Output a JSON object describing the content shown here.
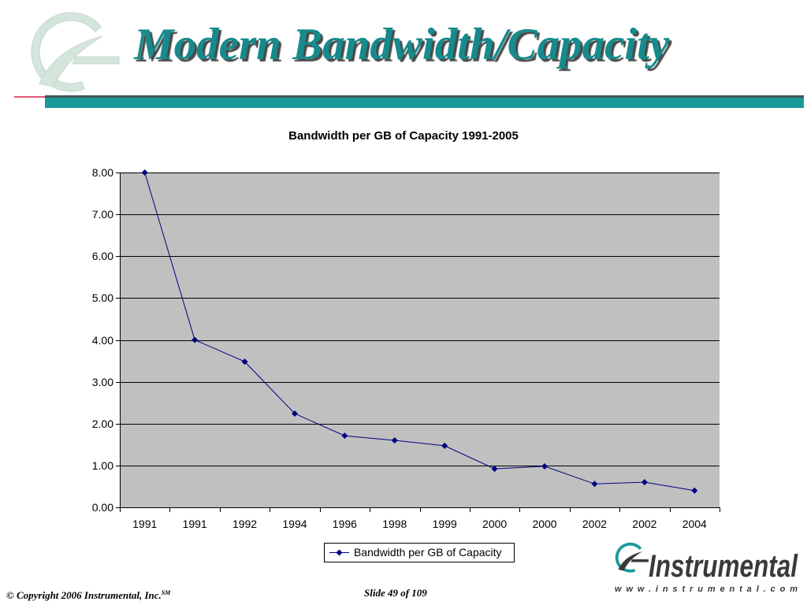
{
  "slide": {
    "title": "Modern Bandwidth/Capacity"
  },
  "footer": {
    "copyright": "© Copyright 2006 Instrumental, Inc.",
    "service_mark": "SM",
    "slide_number": "Slide 49 of 109"
  },
  "branding": {
    "watermark_icon": "instrumental-watermark-icon",
    "logo_icon": "instrumental-logo-icon",
    "logo_name": "Instrumental",
    "logo_url": "www.instrumental.com"
  },
  "colors": {
    "title": "#178a8c",
    "title_shadow": "#4a4a4a",
    "header_bar": "#19989a",
    "header_bar_edge": "#3f5659",
    "header_accent_line": "#e05a7a",
    "watermark": "#d4e5dc",
    "watermark_edge": "#c3d7cd",
    "logo_ring": "#1a9a9a",
    "logo_text": "#3a3a3a"
  },
  "chart_data": {
    "type": "line",
    "title": "Bandwidth per GB of Capacity 1991-2005",
    "categories": [
      "1991",
      "1991",
      "1992",
      "1994",
      "1996",
      "1998",
      "1999",
      "2000",
      "2000",
      "2002",
      "2002",
      "2004"
    ],
    "series": [
      {
        "name": "Bandwidth per GB of Capacity",
        "values": [
          8.0,
          4.0,
          3.48,
          2.24,
          1.71,
          1.6,
          1.47,
          0.92,
          0.98,
          0.56,
          0.6,
          0.4
        ],
        "color": "#000080",
        "marker": "diamond"
      }
    ],
    "ylim": [
      0,
      8
    ],
    "yticks": [
      "0.00",
      "1.00",
      "2.00",
      "3.00",
      "4.00",
      "5.00",
      "6.00",
      "7.00",
      "8.00"
    ],
    "grid": true,
    "legend": "bottom",
    "plot_background": "#c0c0c0"
  }
}
